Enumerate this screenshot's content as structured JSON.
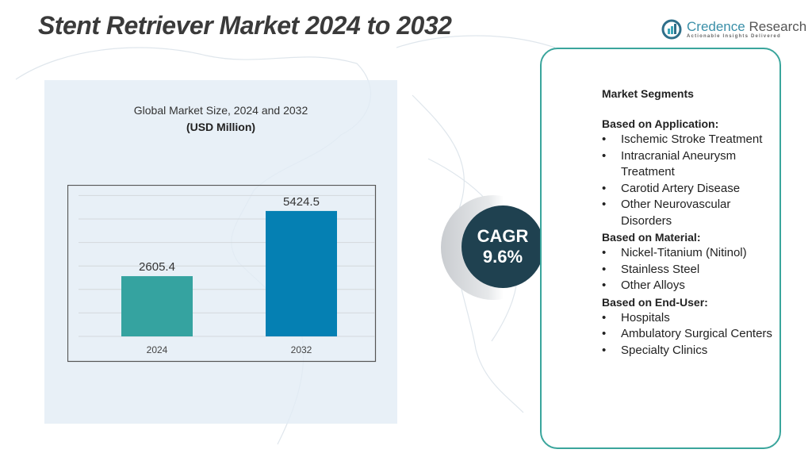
{
  "title": "Stent Retriever Market 2024 to 2032",
  "logo": {
    "name_part1": "Credence",
    "name_part2": " Research",
    "tagline": "Actionable Insights Delivered"
  },
  "chart_subtitle": "Global Market Size, 2024 and 2032",
  "chart_unit": "(USD Million)",
  "chart_data": {
    "type": "bar",
    "categories": [
      "2024",
      "2032"
    ],
    "values": [
      2605.4,
      5424.5
    ],
    "data_labels": [
      "2605.4",
      "5424.5"
    ],
    "colors": [
      "#35a3a0",
      "#0580b3"
    ],
    "ylim": [
      0,
      5800
    ],
    "grid": true,
    "xlabel": "",
    "ylabel": ""
  },
  "cagr": {
    "label": "CAGR",
    "value": "9.6%"
  },
  "segments": {
    "heading": "Market Segments",
    "groups": [
      {
        "title": "Based on Application:",
        "items": [
          "Ischemic Stroke Treatment",
          "Intracranial Aneurysm Treatment",
          "Carotid Artery Disease",
          "Other Neurovascular Disorders"
        ]
      },
      {
        "title": "Based on Material:",
        "items": [
          "Nickel-Titanium (Nitinol)",
          "Stainless Steel",
          "Other Alloys"
        ]
      },
      {
        "title": "Based on End-User:",
        "items": [
          "Hospitals",
          "Ambulatory Surgical Centers",
          "Specialty Clinics"
        ]
      }
    ]
  },
  "colors": {
    "accent": "#3aa59c",
    "cagr_bg": "#1f4150"
  }
}
